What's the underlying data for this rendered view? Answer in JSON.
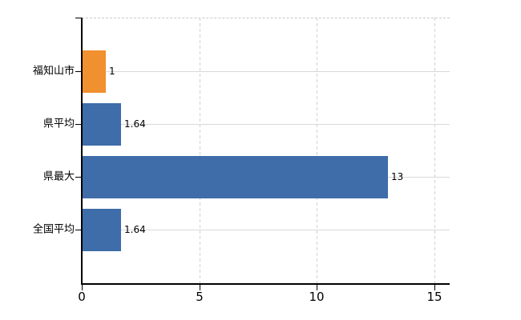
{
  "chart_data": {
    "type": "bar",
    "orientation": "horizontal",
    "title": "",
    "xlabel": "",
    "ylabel": "",
    "categories": [
      "福知山市",
      "県平均",
      "県最大",
      "全国平均"
    ],
    "values": [
      1,
      1.64,
      13,
      1.64
    ],
    "value_labels": [
      "1",
      "1.64",
      "13",
      "1.64"
    ],
    "bar_colors": [
      "#f0902f",
      "#3e6da9",
      "#3e6da9",
      "#3e6da9"
    ],
    "x_ticks": [
      "0",
      "5",
      "10",
      "15"
    ],
    "x_tick_values": [
      0,
      5,
      10,
      15
    ],
    "xlim": [
      0,
      15.65
    ],
    "grid": true,
    "legend_position": "none",
    "colors": {
      "bar_orange": "#f0902f",
      "bar_blue": "#3e6da9",
      "gridline": "#d9d9d9",
      "plot_border_dashed": "#c9c9c9",
      "axis": "#000000",
      "text": "#000000",
      "background": "#ffffff"
    }
  }
}
